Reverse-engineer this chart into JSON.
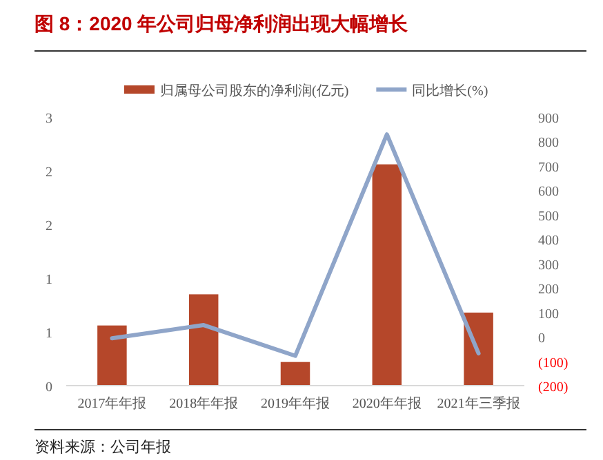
{
  "chart_data": {
    "type": "bar",
    "title": "图 8：2020 年公司归母净利润出现大幅增长",
    "categories": [
      "2017年年报",
      "2018年年报",
      "2019年年报",
      "2020年年报",
      "2021年三季报"
    ],
    "series": [
      {
        "name": "归属母公司股东的净利润(亿元)",
        "color": "#b5472a",
        "values": [
          0.56,
          0.85,
          0.22,
          2.06,
          0.68
        ]
      },
      {
        "name": "同比增长(%)",
        "type": "line",
        "axis": "y2",
        "color": "#8fa5c9",
        "values": [
          -6,
          48,
          -78,
          829,
          -68
        ]
      }
    ],
    "ylim": [
      0,
      2.5
    ],
    "yticks": [
      0,
      {
        "value": 0.5,
        "label": "1"
      },
      1,
      {
        "value": 1.5,
        "label": "2"
      },
      2,
      {
        "value": 2.5,
        "label": "3"
      }
    ],
    "y2lim": [
      -200,
      900
    ],
    "y2ticks": [
      {
        "value": -200,
        "label": "(200)"
      },
      {
        "value": -100,
        "label": "(100)"
      },
      0,
      100,
      200,
      300,
      400,
      500,
      600,
      700,
      800,
      900
    ],
    "legend": "top",
    "grid": false,
    "marker": "none",
    "line_style": "solid",
    "annotations": [
      "资料来源：公司年报"
    ]
  }
}
